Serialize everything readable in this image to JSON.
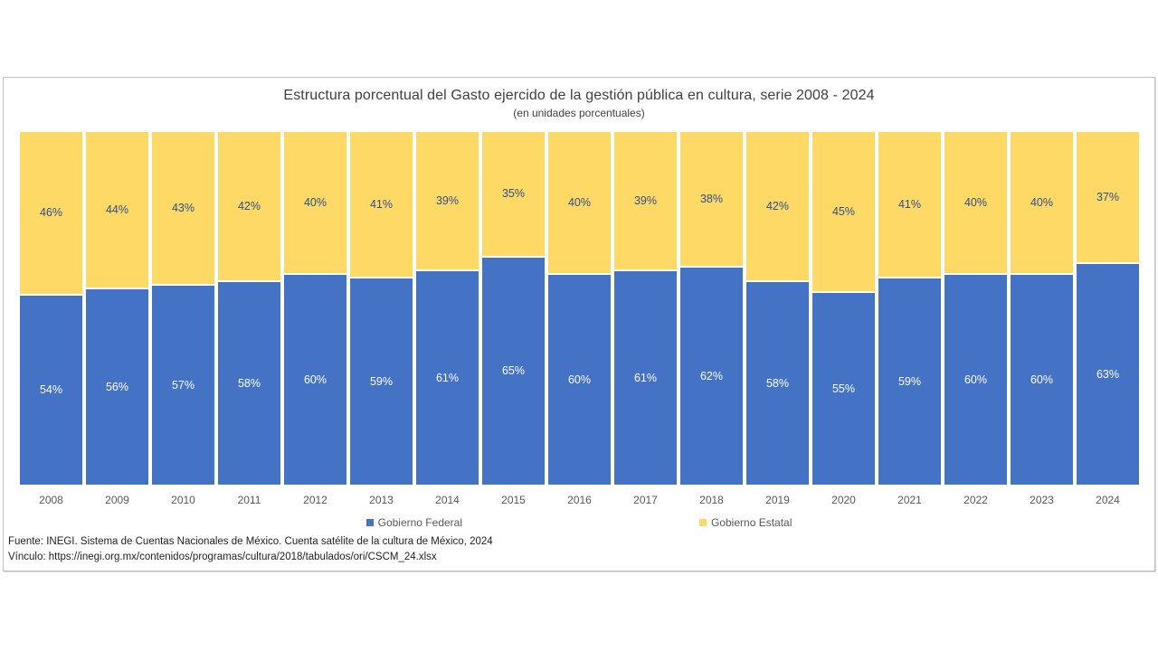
{
  "title": "Estructura porcentual del Gasto ejercido de la gestión pública en cultura, serie 2008 - 2024",
  "subtitle": "(en unidades porcentuales)",
  "chart_data": {
    "type": "bar",
    "stacked": true,
    "orientation": "vertical",
    "categories": [
      "2008",
      "2009",
      "2010",
      "2011",
      "2012",
      "2013",
      "2014",
      "2015",
      "2016",
      "2017",
      "2018",
      "2019",
      "2020",
      "2021",
      "2022",
      "2023",
      "2024"
    ],
    "series": [
      {
        "name": "Gobierno Federal",
        "color": "#4472C4",
        "label_color": "#FFFFFF",
        "values": [
          54,
          56,
          57,
          58,
          60,
          59,
          61,
          65,
          60,
          61,
          62,
          58,
          55,
          59,
          60,
          60,
          63
        ]
      },
      {
        "name": "Gobierno Estatal",
        "color": "#FFD966",
        "label_color": "#2F4E8C",
        "values": [
          46,
          44,
          43,
          42,
          40,
          41,
          39,
          35,
          40,
          39,
          38,
          42,
          45,
          41,
          40,
          40,
          37
        ]
      }
    ],
    "value_suffix": "%",
    "ylim": [
      0,
      100
    ],
    "grid": false,
    "legend_position": "bottom",
    "data_labels": "center"
  },
  "footer": {
    "fuente": "Fuente: INEGI. Sistema de Cuentas Nacionales de México. Cuenta satélite de la cultura de México, 2024",
    "vinculo": "Vínculo: https://inegi.org.mx/contenidos/programas/cultura/2018/tabulados/ori/CSCM_24.xlsx"
  }
}
